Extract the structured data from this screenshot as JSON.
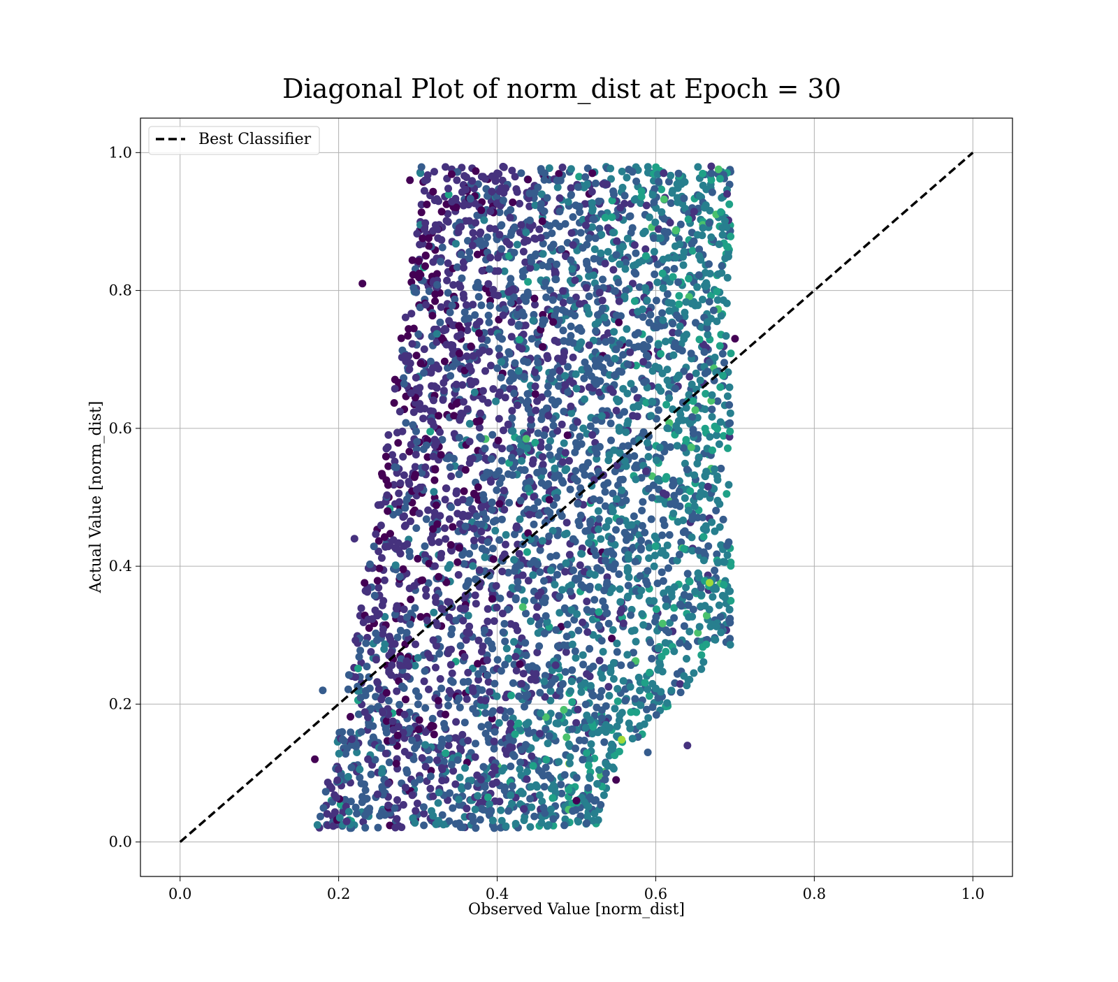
{
  "chart_data": {
    "type": "scatter",
    "title": "Diagonal Plot of norm_dist at Epoch = 30",
    "xlabel": "Observed Value [norm_dist]",
    "ylabel": "Actual Value [norm_dist]",
    "xlim": [
      -0.05,
      1.05
    ],
    "ylim": [
      -0.05,
      1.05
    ],
    "xticks": [
      "0.0",
      "0.2",
      "0.4",
      "0.6",
      "0.8",
      "1.0"
    ],
    "yticks": [
      "0.0",
      "0.2",
      "0.4",
      "0.6",
      "0.8",
      "1.0"
    ],
    "xtick_values": [
      0.0,
      0.2,
      0.4,
      0.6,
      0.8,
      1.0
    ],
    "ytick_values": [
      0.0,
      0.2,
      0.4,
      0.6,
      0.8,
      1.0
    ],
    "grid": true,
    "legend_placement": "top-left",
    "colormap": "viridis",
    "series": [
      {
        "name": "Best Classifier",
        "kind": "line",
        "style": "dashed",
        "color": "#000000",
        "x": [
          0.0,
          1.0
        ],
        "y": [
          0.0,
          1.0
        ]
      }
    ],
    "scatter": {
      "x_range": [
        0.17,
        0.7
      ],
      "y_range": [
        0.02,
        0.98
      ],
      "colors": [
        "#440154",
        "#46327e",
        "#365c8d",
        "#277f8e",
        "#1fa187",
        "#4ac16d",
        "#a0da39"
      ],
      "sample_points": [
        {
          "x": 0.29,
          "y": 0.96
        },
        {
          "x": 0.4,
          "y": 0.97
        },
        {
          "x": 0.46,
          "y": 0.97
        },
        {
          "x": 0.52,
          "y": 0.97
        },
        {
          "x": 0.61,
          "y": 0.97
        },
        {
          "x": 0.67,
          "y": 0.97
        },
        {
          "x": 0.23,
          "y": 0.81
        },
        {
          "x": 0.22,
          "y": 0.44
        },
        {
          "x": 0.18,
          "y": 0.22
        },
        {
          "x": 0.17,
          "y": 0.12
        },
        {
          "x": 0.21,
          "y": 0.03
        },
        {
          "x": 0.37,
          "y": 0.03
        },
        {
          "x": 0.55,
          "y": 0.09
        },
        {
          "x": 0.64,
          "y": 0.14
        },
        {
          "x": 0.69,
          "y": 0.43
        },
        {
          "x": 0.7,
          "y": 0.73
        },
        {
          "x": 0.69,
          "y": 0.94
        },
        {
          "x": 0.59,
          "y": 0.13
        },
        {
          "x": 0.5,
          "y": 0.06
        },
        {
          "x": 0.67,
          "y": 0.98
        }
      ]
    }
  }
}
